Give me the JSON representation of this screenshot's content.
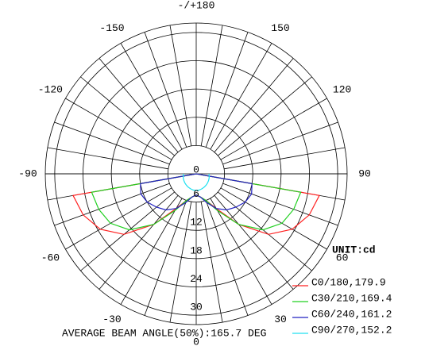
{
  "chart_data": {
    "type": "polar",
    "unit_label": "UNIT:cd",
    "footer": "AVERAGE BEAM ANGLE(50%):165.7 DEG",
    "angles": [
      -90,
      -80,
      -70,
      -60,
      -50,
      -40,
      -30,
      -20,
      -10,
      0,
      10,
      20,
      30,
      40,
      50,
      60,
      70,
      80,
      90
    ],
    "rlim": [
      0,
      32
    ],
    "rticks": [
      0,
      6,
      12,
      18,
      24,
      30
    ],
    "angle_ticks": [
      {
        "value": 180,
        "label": "-/+180"
      },
      150,
      120,
      90,
      60,
      30,
      0,
      -30,
      -60,
      -90,
      -120,
      -150
    ],
    "series": [
      {
        "name": "C0/180,179.9",
        "color": "#ff2020",
        "values": [
          0,
          26.5,
          25.5,
          23.5,
          20,
          14,
          8.5,
          6,
          5,
          4.5,
          5,
          6,
          8.5,
          14,
          20,
          23.5,
          25.5,
          26.5,
          0
        ]
      },
      {
        "name": "C30/210,169.4",
        "color": "#20d020",
        "values": [
          0,
          22.5,
          22,
          21,
          18.5,
          14,
          9,
          6,
          5,
          4.5,
          5,
          6,
          9,
          14,
          18.5,
          21,
          22,
          22.5,
          0
        ]
      },
      {
        "name": "C60/240,161.2",
        "color": "#2020c0",
        "values": [
          0,
          12,
          12.5,
          12,
          11,
          10,
          8.5,
          6.5,
          5,
          4.5,
          5,
          6.5,
          8.5,
          10,
          11,
          12,
          12.5,
          12,
          0
        ]
      },
      {
        "name": "C90/270,152.2",
        "color": "#20e0f0",
        "values": [
          2.7,
          2.8,
          2.9,
          3,
          3.1,
          3.2,
          3.3,
          3.4,
          3.5,
          3.5,
          3.5,
          3.4,
          3.3,
          3.2,
          3.1,
          3,
          2.9,
          2.8,
          2.7
        ]
      }
    ]
  }
}
